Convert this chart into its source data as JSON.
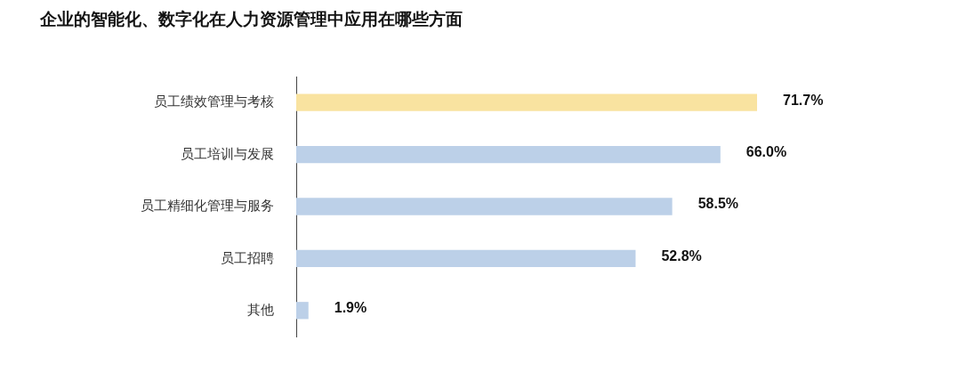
{
  "chart_data": {
    "type": "bar",
    "orientation": "horizontal",
    "title": "企业的智能化、数字化在人力资源管理中应用在哪些方面",
    "categories": [
      "员工绩效管理与考核",
      "员工培训与发展",
      "员工精细化管理与服务",
      "员工招聘",
      "其他"
    ],
    "values": [
      71.7,
      66.0,
      58.5,
      52.8,
      1.9
    ],
    "value_labels": [
      "71.7%",
      "66.0%",
      "58.5%",
      "52.8%",
      "1.9%"
    ],
    "colors": [
      "#f9e3a0",
      "#bcd0e8",
      "#bcd0e8",
      "#bcd0e8",
      "#bcd0e8"
    ],
    "grid": false,
    "legend": false
  }
}
